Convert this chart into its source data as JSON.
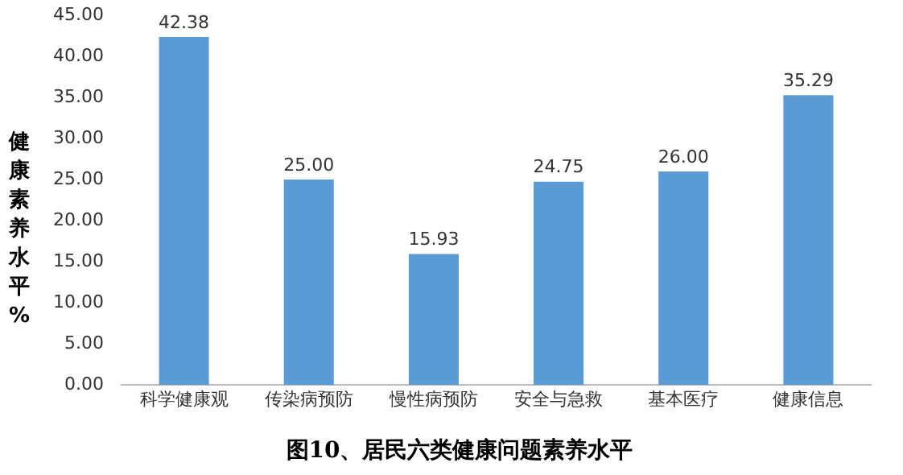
{
  "chart_data": {
    "type": "bar",
    "title": "图10、居民六类健康问题素养水平",
    "ylabel": "健康素养水平%",
    "categories": [
      "科学健康观",
      "传染病预防",
      "慢性病预防",
      "安全与急救",
      "基本医疗",
      "健康信息"
    ],
    "values": [
      42.38,
      25.0,
      15.93,
      24.75,
      26.0,
      35.29
    ],
    "value_labels": [
      "42.38",
      "25.00",
      "15.93",
      "24.75",
      "26.00",
      "35.29"
    ],
    "color": "#5b9bd5",
    "ylim": [
      0,
      45
    ],
    "yticks": [
      {
        "value": 0,
        "label": "0.00"
      },
      {
        "value": 5,
        "label": "5.00"
      },
      {
        "value": 10,
        "label": "10.00"
      },
      {
        "value": 15,
        "label": "15.00"
      },
      {
        "value": 20,
        "label": "20.00"
      },
      {
        "value": 25,
        "label": "25.00"
      },
      {
        "value": 30,
        "label": "30.00"
      },
      {
        "value": 35,
        "label": "35.00"
      },
      {
        "value": 40,
        "label": "40.00"
      },
      {
        "value": 45,
        "label": "45.00"
      }
    ],
    "grid": false,
    "legend": false
  }
}
